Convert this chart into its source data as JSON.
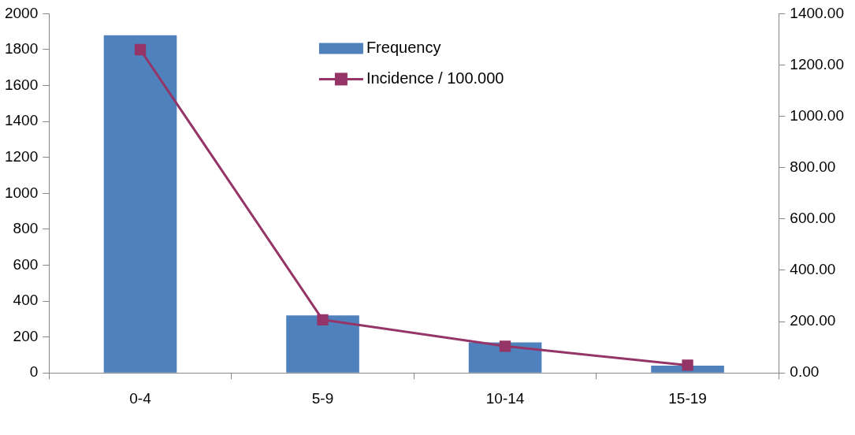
{
  "chart_data": {
    "type": "bar",
    "categories": [
      "0-4",
      "5-9",
      "10-14",
      "15-19"
    ],
    "series": [
      {
        "name": "Frequency",
        "color": "#4f81bd",
        "values": [
          1880,
          320,
          170,
          40
        ]
      },
      {
        "name": "Incidence / 100.000",
        "type": "line",
        "axis": "y2",
        "color": "#953567",
        "marker": "square",
        "values": [
          1260,
          207,
          104,
          30
        ]
      }
    ],
    "ylim": [
      0,
      2000
    ],
    "yticks": [
      0,
      200,
      400,
      600,
      800,
      1000,
      1200,
      1400,
      1600,
      1800,
      2000
    ],
    "y2lim": [
      0,
      1400
    ],
    "y2ticks": [
      {
        "value": 0,
        "label": "0.00"
      },
      {
        "value": 200,
        "label": "200.00"
      },
      {
        "value": 400,
        "label": "400.00"
      },
      {
        "value": 600,
        "label": "600.00"
      },
      {
        "value": 800,
        "label": "800.00"
      },
      {
        "value": 1000,
        "label": "1000.00"
      },
      {
        "value": 1200,
        "label": "1200.00"
      },
      {
        "value": 1400,
        "label": "1400.00"
      }
    ],
    "grid": false,
    "legend": "top"
  }
}
